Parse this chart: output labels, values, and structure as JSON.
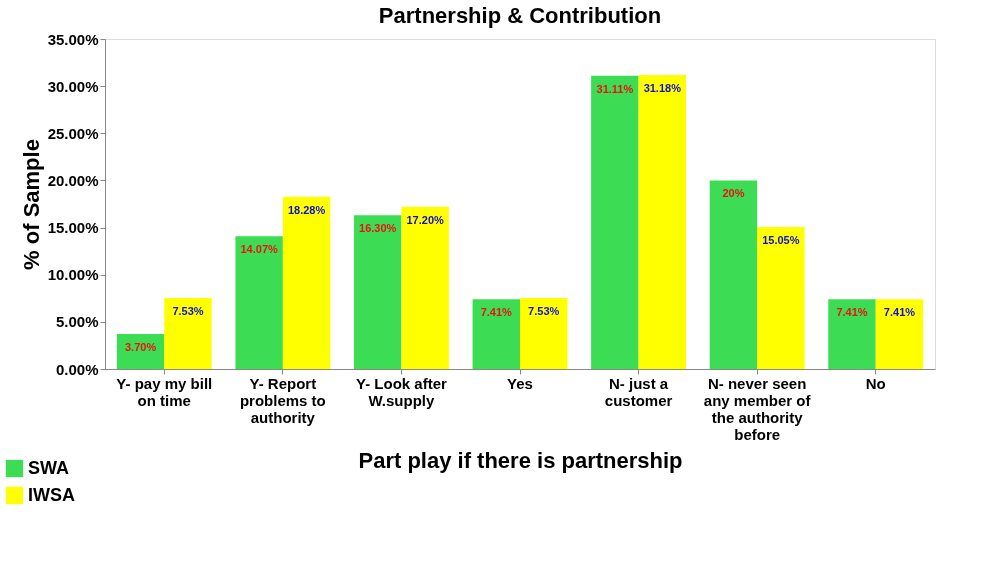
{
  "chart_data": {
    "type": "bar",
    "title": "Partnership & Contribution",
    "xlabel": "Part play if there is partnership",
    "ylabel": "% of Sample",
    "categories": [
      "Y- pay my bill on time",
      "Y- Report problems to authority",
      "Y- Look after W.supply",
      "Yes",
      "N- just a customer",
      "N- never seen any member of the authority before",
      "No"
    ],
    "series": [
      {
        "name": "SWA",
        "color": "#3ddc55",
        "values": [
          3.7,
          14.07,
          16.3,
          7.41,
          31.11,
          20,
          7.41
        ],
        "value_labels": [
          "3.70%",
          "14.07%",
          "16.30%",
          "7.41%",
          "31.11%",
          "20%",
          "7.41%"
        ]
      },
      {
        "name": "IWSA",
        "color": "#ffff00",
        "values": [
          7.53,
          18.28,
          17.2,
          7.53,
          31.18,
          15.05,
          7.41
        ],
        "value_labels": [
          "7.53%",
          "18.28%",
          "17.20%",
          "7.53%",
          "31.18%",
          "15.05%",
          "7.41%"
        ]
      }
    ],
    "ylim": [
      0,
      35
    ],
    "yticks": [
      {
        "value": 0,
        "label": "0.00%"
      },
      {
        "value": 5,
        "label": "5.00%"
      },
      {
        "value": 10,
        "label": "10.00%"
      },
      {
        "value": 15,
        "label": "15.00%"
      },
      {
        "value": 20,
        "label": "20.00%"
      },
      {
        "value": 25,
        "label": "25.00%"
      },
      {
        "value": 30,
        "label": "30.00%"
      },
      {
        "value": 35,
        "label": "35.00%"
      }
    ],
    "grid": false,
    "legend": "bottom left"
  }
}
